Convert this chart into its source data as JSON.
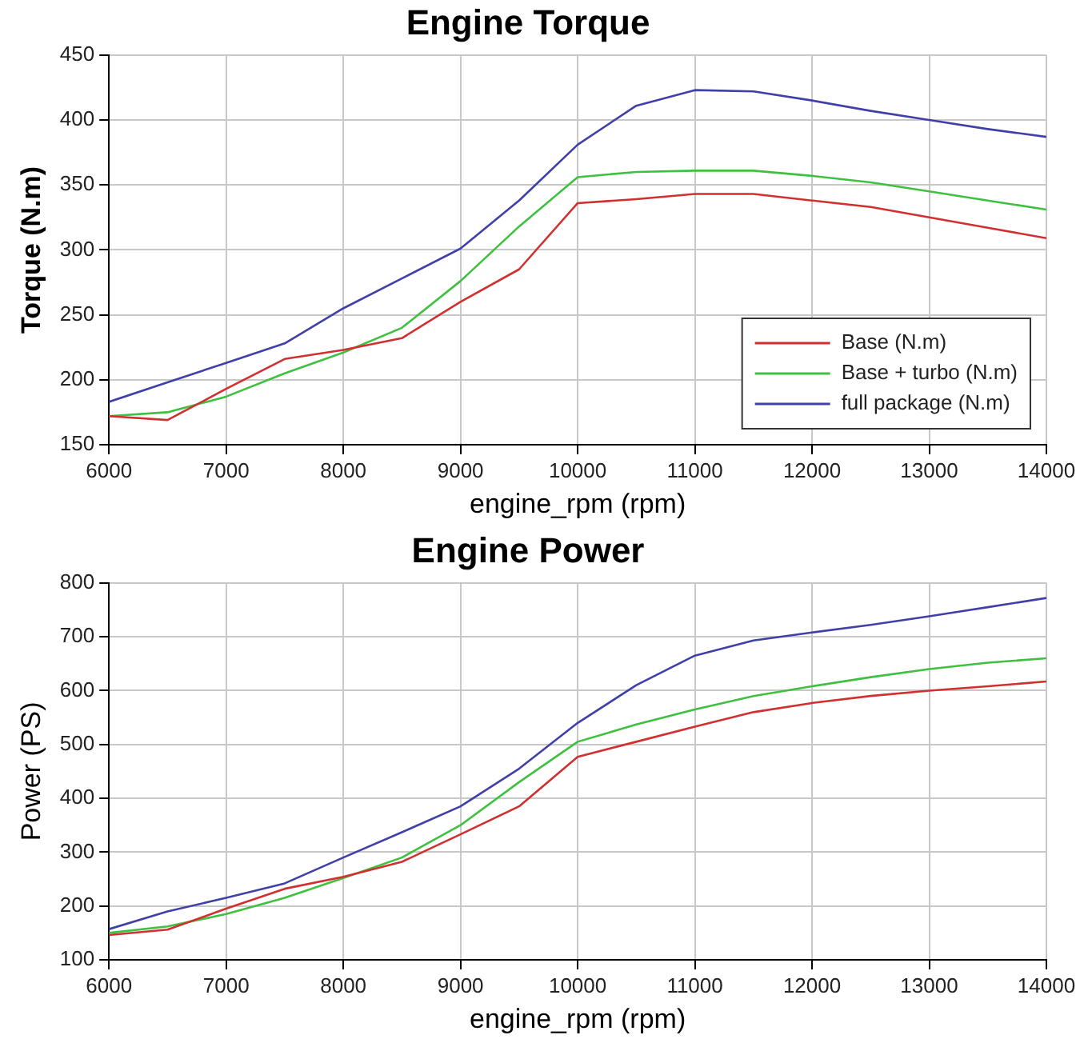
{
  "chart_data": [
    {
      "type": "line",
      "title": "Engine Torque",
      "xlabel": "engine_rpm (rpm)",
      "ylabel": "Torque (N.m)",
      "x": [
        6000,
        6500,
        7000,
        7500,
        8000,
        8500,
        9000,
        9500,
        10000,
        10500,
        11000,
        11500,
        12000,
        12500,
        13000,
        13500,
        14000
      ],
      "series": [
        {
          "name": "Base (N.m)",
          "color": "#d03030",
          "values": [
            172,
            169,
            193,
            216,
            223,
            232,
            260,
            285,
            336,
            339,
            343,
            343,
            338,
            333,
            325,
            317,
            309
          ]
        },
        {
          "name": "Base + turbo (N.m)",
          "color": "#40c040",
          "values": [
            172,
            175,
            187,
            205,
            221,
            240,
            276,
            318,
            356,
            360,
            361,
            361,
            357,
            352,
            345,
            338,
            331
          ]
        },
        {
          "name": "full package (N.m)",
          "color": "#4040a8",
          "values": [
            183,
            198,
            213,
            228,
            255,
            278,
            301,
            338,
            381,
            411,
            423,
            422,
            415,
            407,
            400,
            393,
            387
          ]
        }
      ],
      "xlim": [
        6000,
        14000
      ],
      "xticks": [
        6000,
        7000,
        8000,
        9000,
        10000,
        11000,
        12000,
        13000,
        14000
      ],
      "ylim": [
        150,
        450
      ],
      "yticks": [
        150,
        200,
        250,
        300,
        350,
        400,
        450
      ],
      "grid": true,
      "legend": "bottom right",
      "marker": "none",
      "line_style": "solid"
    },
    {
      "type": "line",
      "title": "Engine Power",
      "xlabel": "engine_rpm (rpm)",
      "ylabel": "Power (PS)",
      "x": [
        6000,
        6500,
        7000,
        7500,
        8000,
        8500,
        9000,
        9500,
        10000,
        10500,
        11000,
        11500,
        12000,
        12500,
        13000,
        13500,
        14000
      ],
      "series": [
        {
          "color": "#d03030",
          "values": [
            146,
            156,
            195,
            232,
            254,
            282,
            333,
            385,
            477,
            505,
            533,
            560,
            577,
            590,
            600,
            608,
            617
          ]
        },
        {
          "color": "#40c040",
          "values": [
            150,
            162,
            185,
            215,
            252,
            290,
            350,
            430,
            505,
            537,
            565,
            590,
            608,
            625,
            640,
            652,
            660
          ]
        },
        {
          "color": "#4040a8",
          "values": [
            157,
            190,
            215,
            242,
            290,
            337,
            385,
            455,
            540,
            610,
            665,
            693,
            708,
            722,
            738,
            755,
            772
          ]
        }
      ],
      "xlim": [
        6000,
        14000
      ],
      "xticks": [
        6000,
        7000,
        8000,
        9000,
        10000,
        11000,
        12000,
        13000,
        14000
      ],
      "ylim": [
        100,
        800
      ],
      "yticks": [
        100,
        200,
        300,
        400,
        500,
        600,
        700,
        800
      ],
      "grid": true,
      "marker": "none",
      "line_style": "solid"
    }
  ]
}
